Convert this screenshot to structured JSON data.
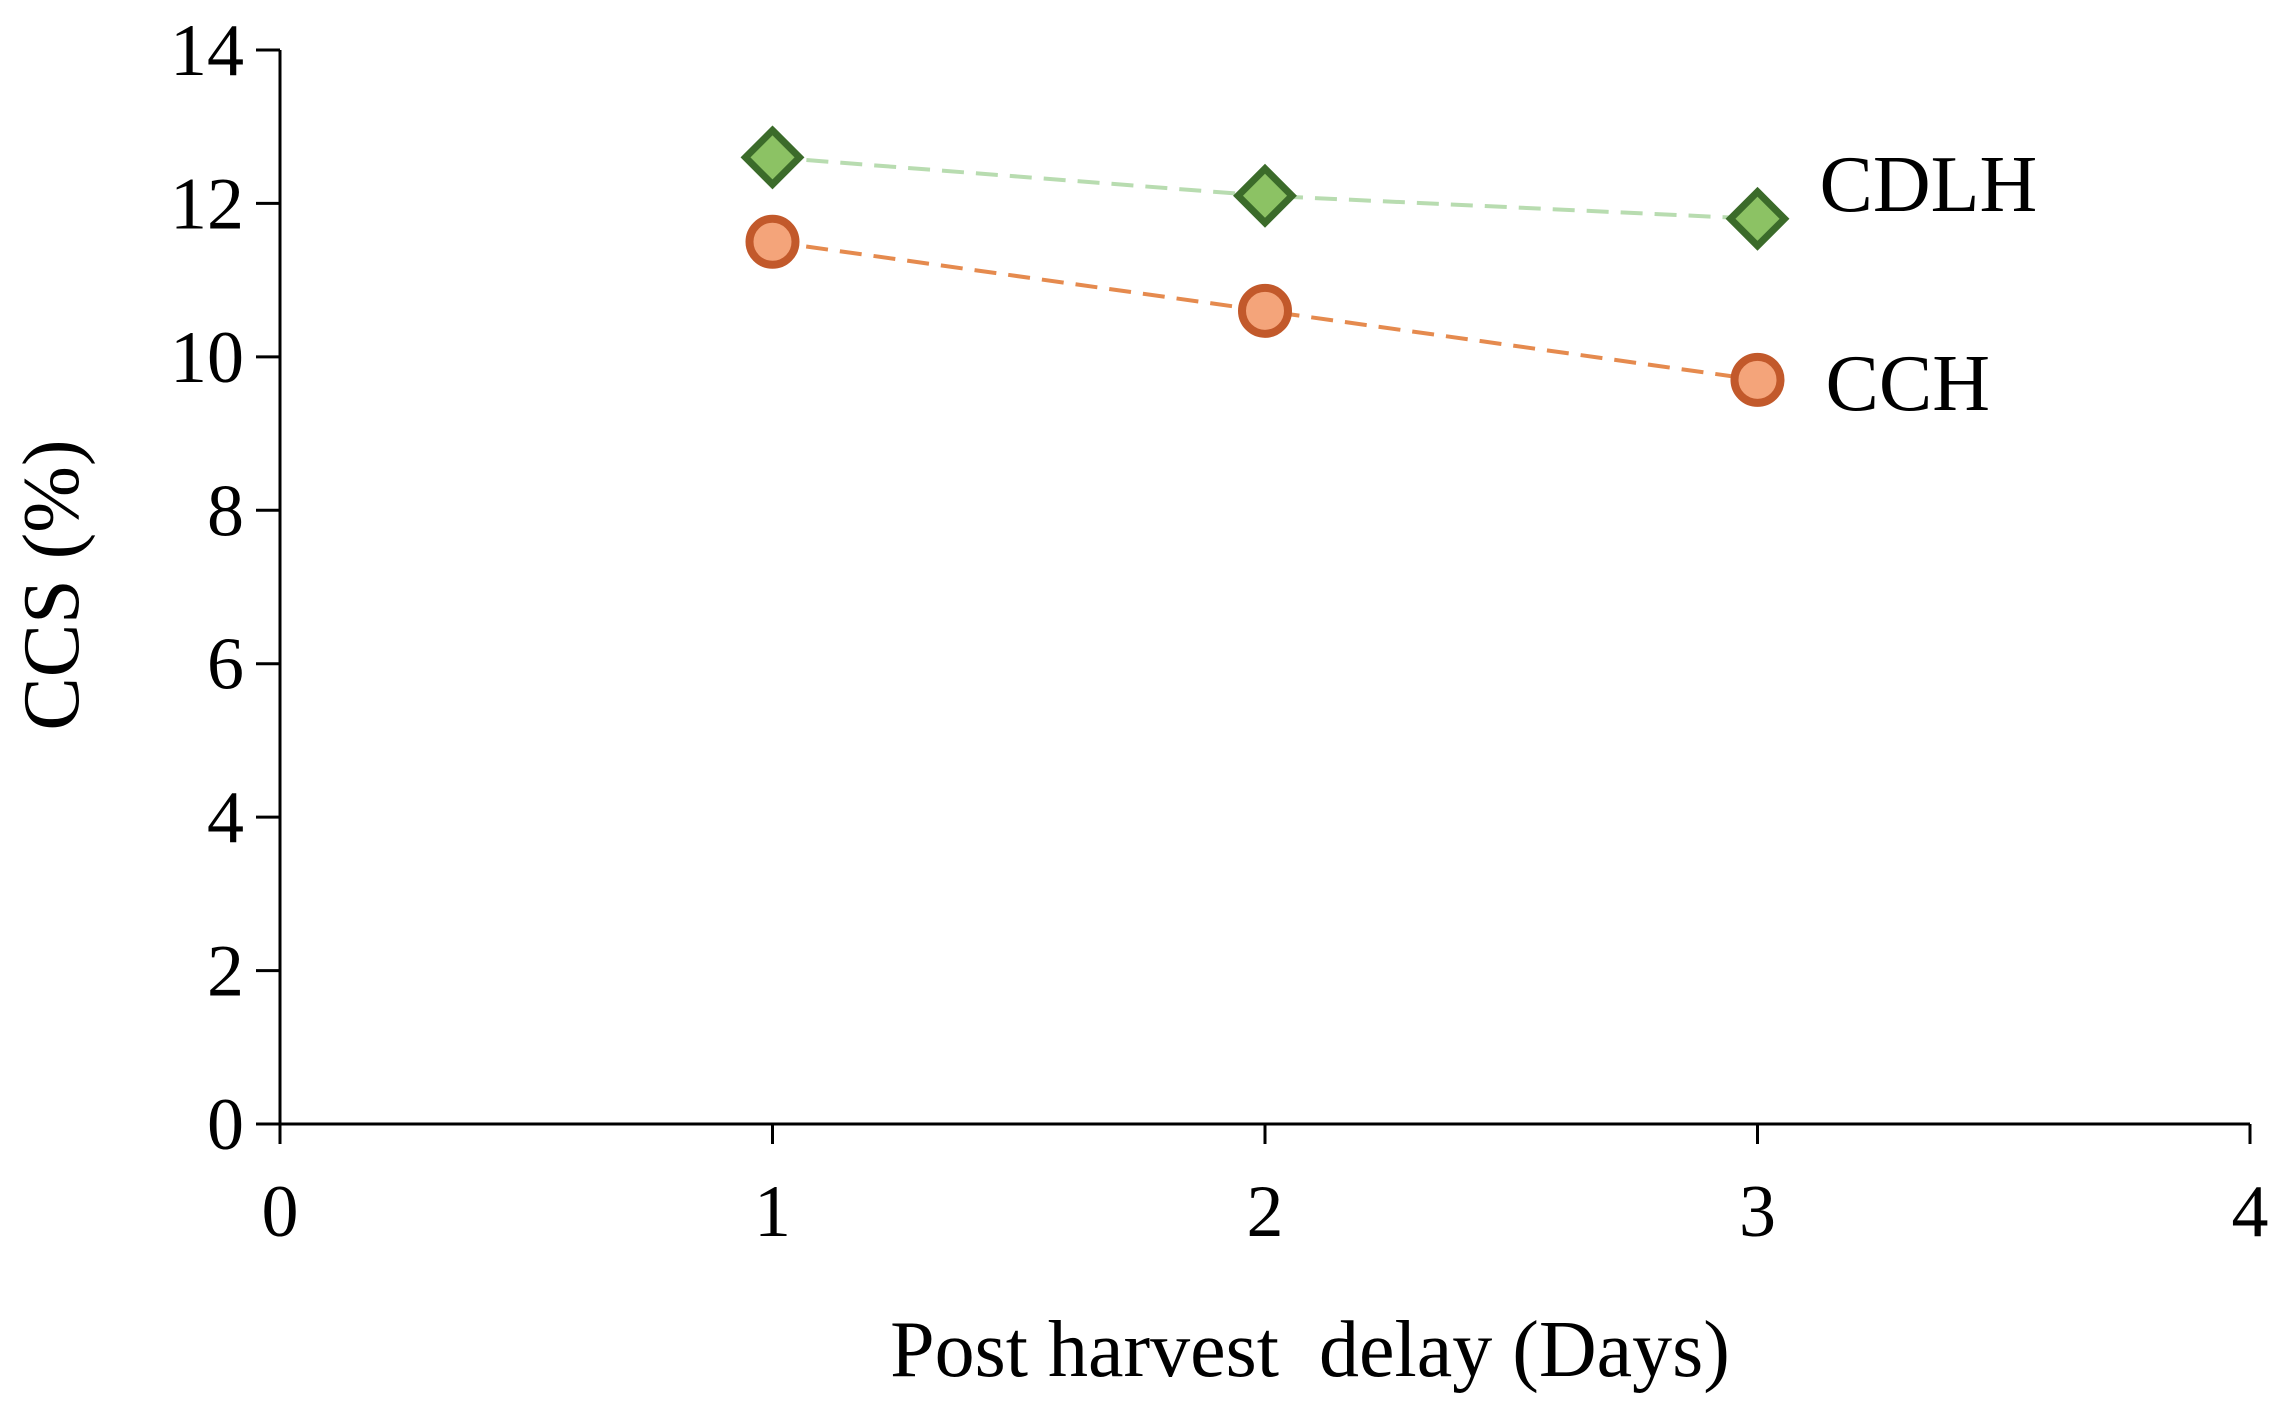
{
  "chart_data": {
    "type": "line",
    "title": "",
    "xlabel": "Post harvest  delay (Days)",
    "ylabel": "CCS (%)",
    "xlim": [
      0,
      4
    ],
    "ylim": [
      0,
      14
    ],
    "xticks": [
      0,
      1,
      2,
      3,
      4
    ],
    "yticks": [
      0,
      2,
      4,
      6,
      8,
      10,
      12,
      14
    ],
    "xtick_labels": [
      "0",
      "1",
      "2",
      "3",
      "4"
    ],
    "ytick_labels": [
      "0",
      "2",
      "4",
      "6",
      "8",
      "10",
      "12",
      "14"
    ],
    "grid": false,
    "legend": "none (series labeled directly at line ends)",
    "series": [
      {
        "name": "CDLH",
        "x": [
          1,
          2,
          3
        ],
        "values": [
          12.6,
          12.1,
          11.8
        ],
        "marker": "diamond",
        "line_style": "dashed",
        "line_color": "#b8dcb0",
        "marker_fill": "#8cc264",
        "marker_edge": "#3b6b2a"
      },
      {
        "name": "CCH",
        "x": [
          1,
          2,
          3
        ],
        "values": [
          11.5,
          10.6,
          9.7
        ],
        "marker": "circle",
        "line_style": "dashed",
        "line_color": "#e58a4e",
        "marker_fill": "#f4a47a",
        "marker_edge": "#c2592b"
      }
    ]
  }
}
